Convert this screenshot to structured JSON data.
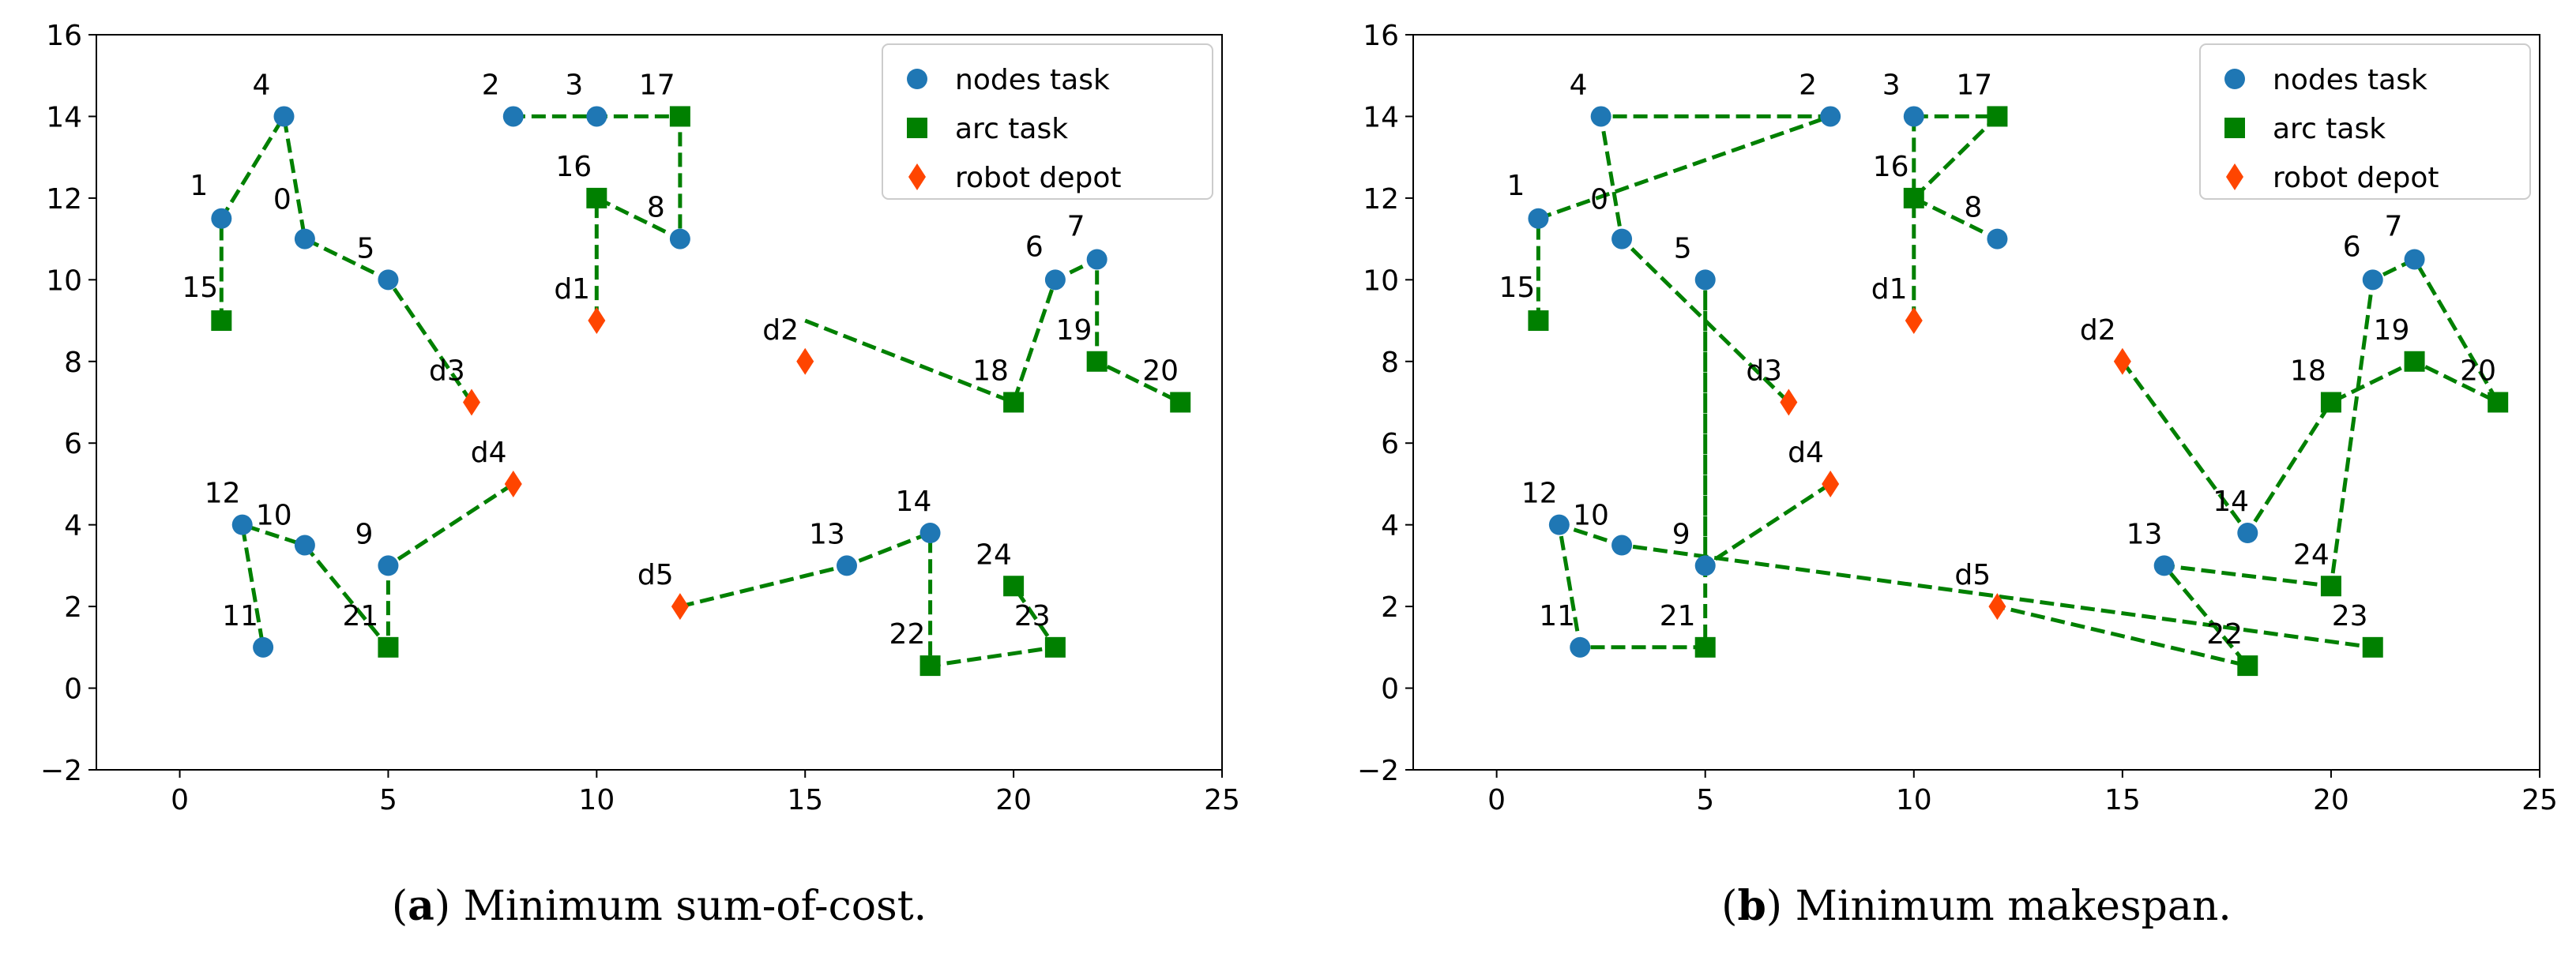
{
  "chart_data": [
    {
      "type": "scatter",
      "panel_label": "a",
      "caption": "Minimum sum-of-cost.",
      "xlim": [
        -2,
        25
      ],
      "ylim": [
        -2,
        16
      ],
      "xticks": [
        0,
        5,
        10,
        15,
        20,
        25
      ],
      "yticks": [
        -2,
        0,
        2,
        4,
        6,
        8,
        10,
        12,
        14,
        16
      ],
      "legend": {
        "position": "top-right",
        "entries": [
          {
            "key": "node",
            "label": "nodes task"
          },
          {
            "key": "arc",
            "label": "arc task"
          },
          {
            "key": "depot",
            "label": "robot depot"
          }
        ]
      },
      "series": [
        {
          "name": "nodes task",
          "marker": "circle",
          "color": "#1f77b4",
          "points": [
            {
              "label": "0",
              "x": 3,
              "y": 11
            },
            {
              "label": "1",
              "x": 1,
              "y": 11.5
            },
            {
              "label": "2",
              "x": 8,
              "y": 14
            },
            {
              "label": "3",
              "x": 10,
              "y": 14
            },
            {
              "label": "4",
              "x": 2.5,
              "y": 14
            },
            {
              "label": "5",
              "x": 5,
              "y": 10
            },
            {
              "label": "6",
              "x": 21,
              "y": 10
            },
            {
              "label": "7",
              "x": 22,
              "y": 10.5
            },
            {
              "label": "8",
              "x": 12,
              "y": 11
            },
            {
              "label": "9",
              "x": 5,
              "y": 3
            },
            {
              "label": "10",
              "x": 3,
              "y": 3.5
            },
            {
              "label": "11",
              "x": 2,
              "y": 1
            },
            {
              "label": "12",
              "x": 1.5,
              "y": 4
            },
            {
              "label": "13",
              "x": 16,
              "y": 3
            },
            {
              "label": "14",
              "x": 18,
              "y": 3.8
            }
          ]
        },
        {
          "name": "arc task",
          "marker": "square",
          "color": "#008000",
          "points": [
            {
              "label": "15",
              "x": 1,
              "y": 9
            },
            {
              "label": "16",
              "x": 10,
              "y": 12
            },
            {
              "label": "17",
              "x": 12,
              "y": 14
            },
            {
              "label": "18",
              "x": 20,
              "y": 7
            },
            {
              "label": "19",
              "x": 22,
              "y": 8
            },
            {
              "label": "20",
              "x": 24,
              "y": 7
            },
            {
              "label": "21",
              "x": 5,
              "y": 1
            },
            {
              "label": "22",
              "x": 18,
              "y": 0.55
            },
            {
              "label": "23",
              "x": 21,
              "y": 1
            },
            {
              "label": "24",
              "x": 20,
              "y": 2.5
            }
          ]
        },
        {
          "name": "robot depot",
          "marker": "diamond",
          "color": "#ff4500",
          "points": [
            {
              "label": "d1",
              "x": 10,
              "y": 9
            },
            {
              "label": "d2",
              "x": 15,
              "y": 8
            },
            {
              "label": "d3",
              "x": 7,
              "y": 7
            },
            {
              "label": "d4",
              "x": 8,
              "y": 5
            },
            {
              "label": "d5",
              "x": 12,
              "y": 2
            }
          ]
        }
      ],
      "routes": [
        {
          "name": "route-1",
          "color": "#008000",
          "path": [
            [
              15,
              9
            ],
            [
              20,
              7
            ],
            [
              21,
              10
            ],
            [
              22,
              10.5
            ],
            [
              22,
              8
            ],
            [
              24,
              7
            ]
          ]
        },
        {
          "name": "route-2",
          "color": "#008000",
          "path": [
            [
              7,
              7
            ],
            [
              5,
              10
            ],
            [
              3,
              11
            ],
            [
              2.5,
              14
            ],
            [
              1,
              11.5
            ],
            [
              1,
              9
            ]
          ]
        },
        {
          "name": "route-3",
          "color": "#008000",
          "path": [
            [
              10,
              9
            ],
            [
              10,
              12
            ],
            [
              12,
              11
            ],
            [
              12,
              14
            ],
            [
              10,
              14
            ],
            [
              8,
              14
            ]
          ]
        },
        {
          "name": "route-4",
          "color": "#008000",
          "path": [
            [
              8,
              5
            ],
            [
              5,
              3
            ],
            [
              5,
              1
            ],
            [
              3,
              3.5
            ],
            [
              1.5,
              4
            ],
            [
              2,
              1
            ]
          ]
        },
        {
          "name": "route-5",
          "color": "#008000",
          "path": [
            [
              12,
              2
            ],
            [
              16,
              3
            ],
            [
              18,
              3.8
            ],
            [
              18,
              0.55
            ],
            [
              21,
              1
            ],
            [
              20,
              2.5
            ]
          ]
        }
      ]
    },
    {
      "type": "scatter",
      "panel_label": "b",
      "caption": "Minimum makespan.",
      "xlim": [
        -2,
        25
      ],
      "ylim": [
        -2,
        16
      ],
      "xticks": [
        0,
        5,
        10,
        15,
        20,
        25
      ],
      "yticks": [
        -2,
        0,
        2,
        4,
        6,
        8,
        10,
        12,
        14,
        16
      ],
      "legend": {
        "position": "top-right",
        "entries": [
          {
            "key": "node",
            "label": "nodes task"
          },
          {
            "key": "arc",
            "label": "arc task"
          },
          {
            "key": "depot",
            "label": "robot depot"
          }
        ]
      },
      "series": [
        {
          "name": "nodes task",
          "marker": "circle",
          "color": "#1f77b4",
          "points": [
            {
              "label": "0",
              "x": 3,
              "y": 11
            },
            {
              "label": "1",
              "x": 1,
              "y": 11.5
            },
            {
              "label": "2",
              "x": 8,
              "y": 14
            },
            {
              "label": "3",
              "x": 10,
              "y": 14
            },
            {
              "label": "4",
              "x": 2.5,
              "y": 14
            },
            {
              "label": "5",
              "x": 5,
              "y": 10
            },
            {
              "label": "6",
              "x": 21,
              "y": 10
            },
            {
              "label": "7",
              "x": 22,
              "y": 10.5
            },
            {
              "label": "8",
              "x": 12,
              "y": 11
            },
            {
              "label": "9",
              "x": 5,
              "y": 3
            },
            {
              "label": "10",
              "x": 3,
              "y": 3.5
            },
            {
              "label": "11",
              "x": 2,
              "y": 1
            },
            {
              "label": "12",
              "x": 1.5,
              "y": 4
            },
            {
              "label": "13",
              "x": 16,
              "y": 3
            },
            {
              "label": "14",
              "x": 18,
              "y": 3.8
            }
          ]
        },
        {
          "name": "arc task",
          "marker": "square",
          "color": "#008000",
          "points": [
            {
              "label": "15",
              "x": 1,
              "y": 9
            },
            {
              "label": "16",
              "x": 10,
              "y": 12
            },
            {
              "label": "17",
              "x": 12,
              "y": 14
            },
            {
              "label": "18",
              "x": 20,
              "y": 7
            },
            {
              "label": "19",
              "x": 22,
              "y": 8
            },
            {
              "label": "20",
              "x": 24,
              "y": 7
            },
            {
              "label": "21",
              "x": 5,
              "y": 1
            },
            {
              "label": "22",
              "x": 18,
              "y": 0.55
            },
            {
              "label": "23",
              "x": 21,
              "y": 1
            },
            {
              "label": "24",
              "x": 20,
              "y": 2.5
            }
          ]
        },
        {
          "name": "robot depot",
          "marker": "diamond",
          "color": "#ff4500",
          "points": [
            {
              "label": "d1",
              "x": 10,
              "y": 9
            },
            {
              "label": "d2",
              "x": 15,
              "y": 8
            },
            {
              "label": "d3",
              "x": 7,
              "y": 7
            },
            {
              "label": "d4",
              "x": 8,
              "y": 5
            },
            {
              "label": "d5",
              "x": 12,
              "y": 2
            }
          ]
        }
      ],
      "routes": [
        {
          "name": "route-1",
          "color": "#008000",
          "path": [
            [
              10,
              9
            ],
            [
              10,
              12
            ],
            [
              12,
              11
            ]
          ]
        },
        {
          "name": "route-2",
          "color": "#008000",
          "path": [
            [
              7,
              7
            ],
            [
              3,
              11
            ],
            [
              2.5,
              14
            ],
            [
              8,
              14
            ],
            [
              1,
              11.5
            ],
            [
              1,
              9
            ]
          ]
        },
        {
          "name": "route-3",
          "color": "#008000",
          "path": [
            [
              8,
              5
            ],
            [
              5,
              3
            ],
            [
              5,
              10
            ],
            [
              5,
              1
            ],
            [
              2,
              1
            ],
            [
              1.5,
              4
            ],
            [
              3,
              3.5
            ],
            [
              21,
              1
            ]
          ]
        },
        {
          "name": "route-4",
          "color": "#008000",
          "path": [
            [
              15,
              8
            ],
            [
              18,
              3.8
            ],
            [
              20,
              7
            ],
            [
              22,
              8
            ],
            [
              24,
              7
            ],
            [
              22,
              10.5
            ],
            [
              21,
              10
            ],
            [
              20,
              2.5
            ],
            [
              16,
              3
            ],
            [
              18,
              0.55
            ],
            [
              12,
              2
            ]
          ]
        },
        {
          "name": "route-5",
          "color": "#008000",
          "path": [
            [
              10,
              14
            ],
            [
              12,
              14
            ],
            [
              10,
              12
            ],
            [
              10,
              14
            ]
          ]
        }
      ]
    }
  ]
}
